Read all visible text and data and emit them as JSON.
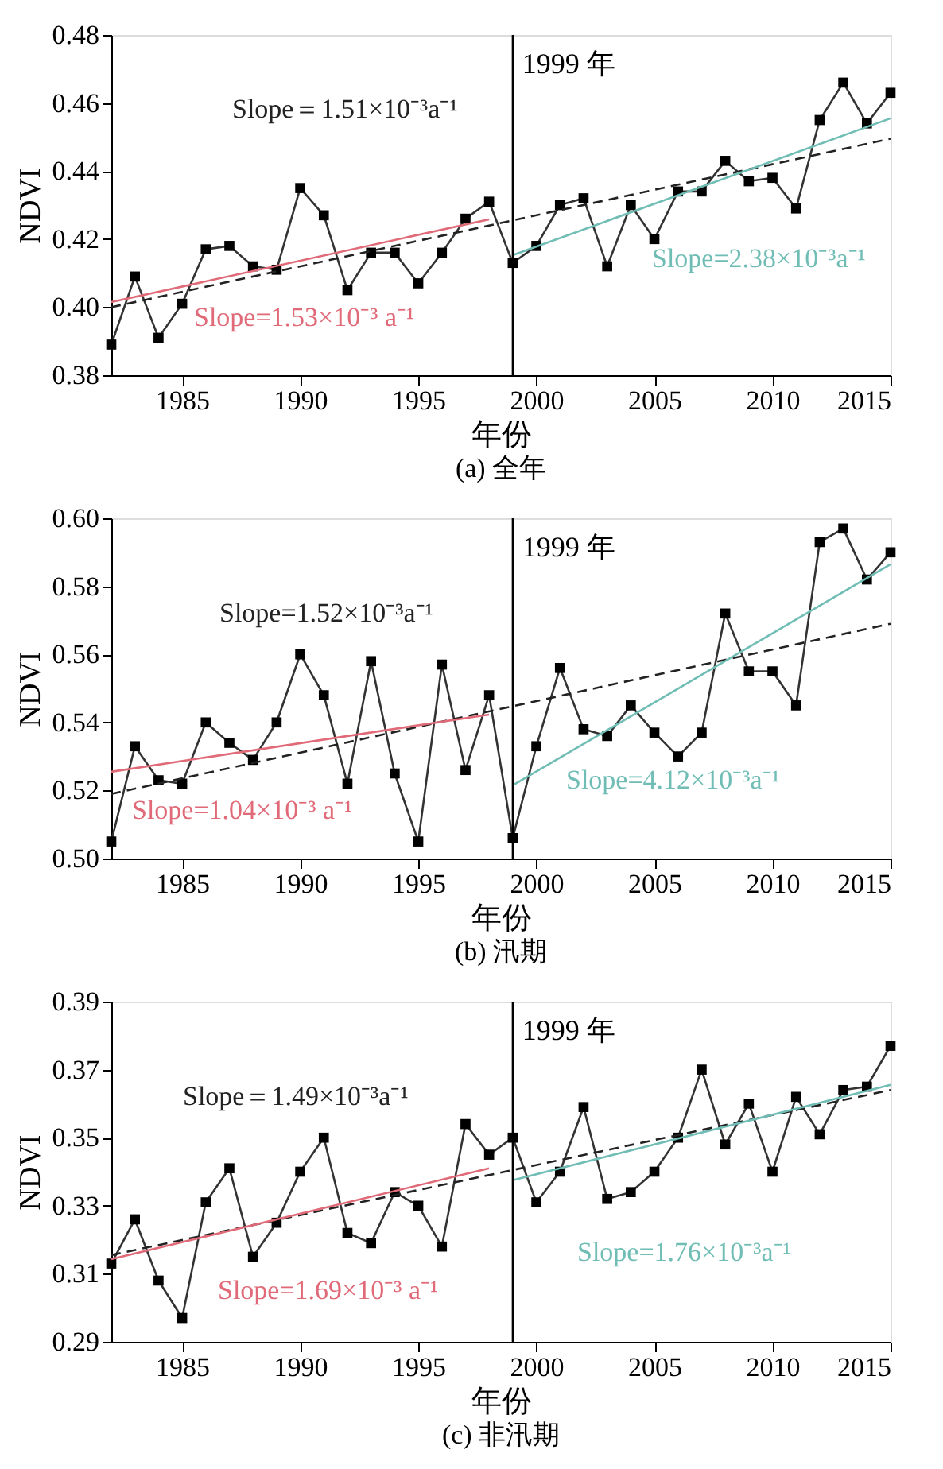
{
  "chart_data": [
    {
      "type": "line",
      "title": "(a) 全年",
      "xlabel": "年份",
      "ylabel": "NDVI",
      "xlim": [
        1982,
        2015
      ],
      "xticks": [
        1985,
        1990,
        1995,
        2000,
        2005,
        2010,
        2015
      ],
      "ylim": [
        0.38,
        0.48
      ],
      "yticks": [
        {
          "value": 0.38,
          "label": "0.38"
        },
        {
          "value": 0.4,
          "label": "0.40"
        },
        {
          "value": 0.42,
          "label": "0.42"
        },
        {
          "value": 0.44,
          "label": "0.44"
        },
        {
          "value": 0.46,
          "label": "0.46"
        },
        {
          "value": 0.48,
          "label": "0.48"
        }
      ],
      "grid": false,
      "series": [
        {
          "color": "#333333",
          "marker": "square",
          "line_style": "solid",
          "x": [
            1982,
            1983,
            1984,
            1985,
            1986,
            1987,
            1988,
            1989,
            1990,
            1991,
            1992,
            1993,
            1994,
            1995,
            1996,
            1997,
            1998,
            1999,
            2000,
            2001,
            2002,
            2003,
            2004,
            2005,
            2006,
            2007,
            2008,
            2009,
            2010,
            2011,
            2012,
            2013,
            2014,
            2015
          ],
          "values": [
            0.389,
            0.409,
            0.391,
            0.401,
            0.417,
            0.418,
            0.412,
            0.411,
            0.435,
            0.427,
            0.405,
            0.416,
            0.416,
            0.407,
            0.416,
            0.426,
            0.431,
            0.413,
            0.418,
            0.43,
            0.432,
            0.412,
            0.43,
            0.42,
            0.434,
            0.434,
            0.443,
            0.437,
            0.438,
            0.429,
            0.455,
            0.466,
            0.454,
            0.463
          ]
        },
        {
          "color": "#222222",
          "marker": "none",
          "line_style": "dashed",
          "x": [
            1982,
            2015
          ],
          "values": [
            0.4,
            0.4495
          ]
        },
        {
          "color": "#e06a78",
          "marker": "none",
          "line_style": "solid",
          "x": [
            1982,
            1998
          ],
          "values": [
            0.4015,
            0.4258
          ]
        },
        {
          "color": "#6fbdb5",
          "marker": "none",
          "line_style": "solid",
          "x": [
            1999,
            2015
          ],
          "values": [
            0.4153,
            0.4555
          ]
        }
      ],
      "ref_lines": [
        {
          "axis": "x",
          "value": 1999,
          "label": "1999 年",
          "color": "#000000"
        }
      ],
      "annotations": [
        "Slope＝1.51×10⁻³a⁻¹",
        "Slope=1.53×10⁻³ a⁻¹",
        "Slope=2.38×10⁻³a⁻¹"
      ]
    },
    {
      "type": "line",
      "title": "(b) 汛期",
      "xlabel": "年份",
      "ylabel": "NDVI",
      "xlim": [
        1982,
        2015
      ],
      "xticks": [
        1985,
        1990,
        1995,
        2000,
        2005,
        2010,
        2015
      ],
      "ylim": [
        0.5,
        0.6
      ],
      "yticks": [
        {
          "value": 0.5,
          "label": "0.50"
        },
        {
          "value": 0.52,
          "label": "0.52"
        },
        {
          "value": 0.54,
          "label": "0.54"
        },
        {
          "value": 0.56,
          "label": "0.56"
        },
        {
          "value": 0.58,
          "label": "0.58"
        },
        {
          "value": 0.6,
          "label": "0.60"
        }
      ],
      "grid": false,
      "series": [
        {
          "color": "#333333",
          "marker": "square",
          "line_style": "solid",
          "x": [
            1982,
            1983,
            1984,
            1985,
            1986,
            1987,
            1988,
            1989,
            1990,
            1991,
            1992,
            1993,
            1994,
            1995,
            1996,
            1997,
            1998,
            1999,
            2000,
            2001,
            2002,
            2003,
            2004,
            2005,
            2006,
            2007,
            2008,
            2009,
            2010,
            2011,
            2012,
            2013,
            2014,
            2015
          ],
          "values": [
            0.505,
            0.533,
            0.523,
            0.522,
            0.54,
            0.534,
            0.529,
            0.54,
            0.56,
            0.548,
            0.522,
            0.558,
            0.525,
            0.505,
            0.557,
            0.526,
            0.548,
            0.506,
            0.533,
            0.556,
            0.538,
            0.536,
            0.545,
            0.537,
            0.53,
            0.537,
            0.572,
            0.555,
            0.555,
            0.545,
            0.593,
            0.597,
            0.582,
            0.59
          ]
        },
        {
          "color": "#222222",
          "marker": "none",
          "line_style": "dashed",
          "x": [
            1982,
            2015
          ],
          "values": [
            0.519,
            0.569
          ]
        },
        {
          "color": "#e06a78",
          "marker": "none",
          "line_style": "solid",
          "x": [
            1982,
            1998
          ],
          "values": [
            0.5255,
            0.5423
          ]
        },
        {
          "color": "#6fbdb5",
          "marker": "none",
          "line_style": "solid",
          "x": [
            1999,
            2015
          ],
          "values": [
            0.5215,
            0.5865
          ]
        }
      ],
      "ref_lines": [
        {
          "axis": "x",
          "value": 1999,
          "label": "1999 年",
          "color": "#000000"
        }
      ],
      "annotations": [
        "Slope=1.52×10⁻³a⁻¹",
        "Slope=1.04×10⁻³ a⁻¹",
        "Slope=4.12×10⁻³a⁻¹"
      ]
    },
    {
      "type": "line",
      "title": "(c) 非汛期",
      "xlabel": "年份",
      "ylabel": "NDVI",
      "xlim": [
        1982,
        2015
      ],
      "xticks": [
        1985,
        1990,
        1995,
        2000,
        2005,
        2010,
        2015
      ],
      "ylim": [
        0.29,
        0.39
      ],
      "yticks": [
        0.29,
        0.31,
        0.33,
        0.35,
        0.37,
        0.39
      ],
      "grid": false,
      "series": [
        {
          "color": "#333333",
          "marker": "square",
          "line_style": "solid",
          "x": [
            1982,
            1983,
            1984,
            1985,
            1986,
            1987,
            1988,
            1989,
            1990,
            1991,
            1992,
            1993,
            1994,
            1995,
            1996,
            1997,
            1998,
            1999,
            2000,
            2001,
            2002,
            2003,
            2004,
            2005,
            2006,
            2007,
            2008,
            2009,
            2010,
            2011,
            2012,
            2013,
            2014,
            2015
          ],
          "values": [
            0.313,
            0.326,
            0.308,
            0.297,
            0.331,
            0.341,
            0.315,
            0.325,
            0.34,
            0.35,
            0.322,
            0.319,
            0.334,
            0.33,
            0.318,
            0.354,
            0.345,
            0.35,
            0.331,
            0.34,
            0.359,
            0.332,
            0.334,
            0.34,
            0.35,
            0.37,
            0.348,
            0.36,
            0.34,
            0.362,
            0.351,
            0.364,
            0.365,
            0.377
          ]
        },
        {
          "color": "#222222",
          "marker": "none",
          "line_style": "dashed",
          "x": [
            1982,
            2015
          ],
          "values": [
            0.3155,
            0.364
          ]
        },
        {
          "color": "#e06a78",
          "marker": "none",
          "line_style": "solid",
          "x": [
            1982,
            1998
          ],
          "values": [
            0.3143,
            0.341
          ]
        },
        {
          "color": "#6fbdb5",
          "marker": "none",
          "line_style": "solid",
          "x": [
            1999,
            2015
          ],
          "values": [
            0.3375,
            0.3655
          ]
        }
      ],
      "ref_lines": [
        {
          "axis": "x",
          "value": 1999,
          "label": "1999 年",
          "color": "#000000"
        }
      ],
      "annotations": [
        "Slope＝1.49×10⁻³a⁻¹",
        "Slope=1.69×10⁻³ a⁻¹",
        "Slope=1.76×10⁻³a⁻¹"
      ]
    }
  ]
}
